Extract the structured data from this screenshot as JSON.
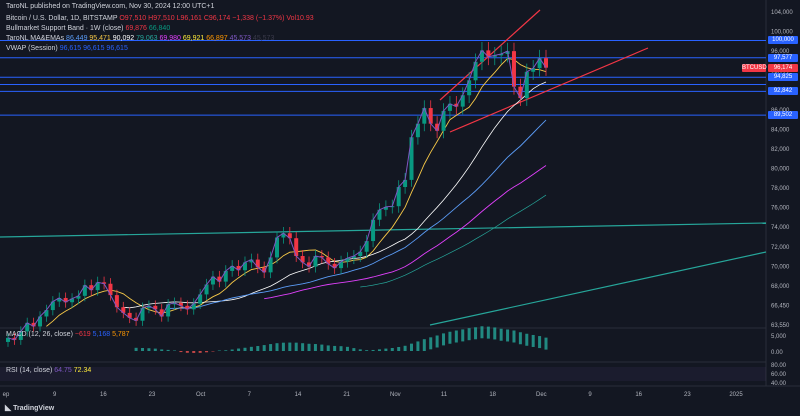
{
  "header": {
    "publisher": "TaroNL published on TradingView.com, Nov 30, 2024 12:00 UTC+1",
    "symbol_line": "Bitcoin / U.S. Dollar, 1D, BITSTAMP",
    "ohlc": {
      "o": "O97,510",
      "h": "H97,510",
      "l": "L96,161",
      "c": "C96,174",
      "chg": "−1,338 (−1.37%)",
      "vol": "Vol10.93"
    },
    "indicators": [
      {
        "label": "Bullmarket Support Band · 1W (close)",
        "values": [
          "69,876",
          "66,840"
        ],
        "colors": [
          "#f23645",
          "#089981"
        ]
      },
      {
        "label": "TaroNL MA&EMAs",
        "values": [
          "86,449",
          "95,471",
          "90,092",
          "79,063",
          "69,980",
          "69,921",
          "66,897",
          "45,573",
          "45,573"
        ],
        "colors": [
          "#5b9cf6",
          "#f7c948",
          "#ffffff",
          "#26a69a",
          "#e040fb",
          "#ffeb3b",
          "#ff9800",
          "#7e57c2",
          "#3a3a4a"
        ]
      },
      {
        "label": "VWAP (Session)",
        "values": [
          "96,615",
          "96,615",
          "96,615"
        ],
        "colors": [
          "#2962ff",
          "#2962ff",
          "#2962ff"
        ]
      }
    ]
  },
  "price_tags": [
    {
      "label": "100,000",
      "value": 100000,
      "color": "#2962ff"
    },
    {
      "label": "97,577",
      "value": 97577,
      "color": "#2962ff"
    },
    {
      "label": "BTCUSD",
      "value": 96174,
      "color": "#f23645"
    },
    {
      "label": "96,174",
      "value": 96174,
      "color": "#f23645"
    },
    {
      "label": "94,825",
      "value": 94825,
      "color": "#2962ff"
    },
    {
      "label": "92,842",
      "value": 92842,
      "color": "#2962ff"
    },
    {
      "label": "89,502",
      "value": 89502,
      "color": "#2962ff"
    }
  ],
  "macd": {
    "label": "MACD (12, 26, close)",
    "values": [
      "−619",
      "5,168",
      "5,787"
    ],
    "colors": [
      "#f23645",
      "#2962ff",
      "#ff9800"
    ]
  },
  "rsi": {
    "label": "RSI (14, close)",
    "values": [
      "64.75",
      "72.34"
    ],
    "colors": [
      "#7e57c2",
      "#ffeb3b"
    ]
  },
  "logo": "TradingView",
  "chart_data": {
    "type": "candlestick",
    "y_axis_ticks": [
      "104,000",
      "100,000",
      "96,000",
      "92,000",
      "88,000",
      "86,000",
      "84,000",
      "82,000",
      "80,000",
      "78,000",
      "76,000",
      "74,000",
      "72,000",
      "70,000",
      "68,000",
      "66,450",
      "63,550"
    ],
    "x_axis_ticks": [
      "ep",
      "9",
      "16",
      "23",
      "Oct",
      "7",
      "14",
      "21",
      "Nov",
      "11",
      "18",
      "Dec",
      "9",
      "16",
      "23",
      "2025"
    ],
    "macd_ticks": [
      "5,000",
      "0.00"
    ],
    "rsi_ticks": [
      "80.00",
      "60.00",
      "40.00"
    ],
    "horizontal_levels": [
      100000,
      97577,
      94825,
      93800,
      92842,
      89502
    ],
    "candles_close": [
      58200,
      57900,
      59100,
      60300,
      59800,
      61200,
      62100,
      63300,
      63800,
      63200,
      63700,
      64100,
      65600,
      64900,
      66000,
      65800,
      64200,
      62500,
      61700,
      61000,
      60600,
      62400,
      62700,
      62200,
      61200,
      62900,
      63100,
      62700,
      62200,
      63000,
      64300,
      65700,
      66800,
      66100,
      67600,
      68300,
      67700,
      68800,
      69200,
      68100,
      67400,
      69500,
      72300,
      72900,
      72200,
      69700,
      68800,
      68200,
      69700,
      69500,
      68600,
      68000,
      68900,
      69400,
      69700,
      70300,
      71800,
      74800,
      76200,
      76600,
      76700,
      79400,
      80400,
      86400,
      88300,
      90500,
      88300,
      87300,
      90100,
      91100,
      90700,
      92300,
      94400,
      97000,
      98600,
      97700,
      97900,
      98100,
      98500,
      93500,
      91900,
      95600,
      96100,
      97510,
      96174
    ]
  }
}
